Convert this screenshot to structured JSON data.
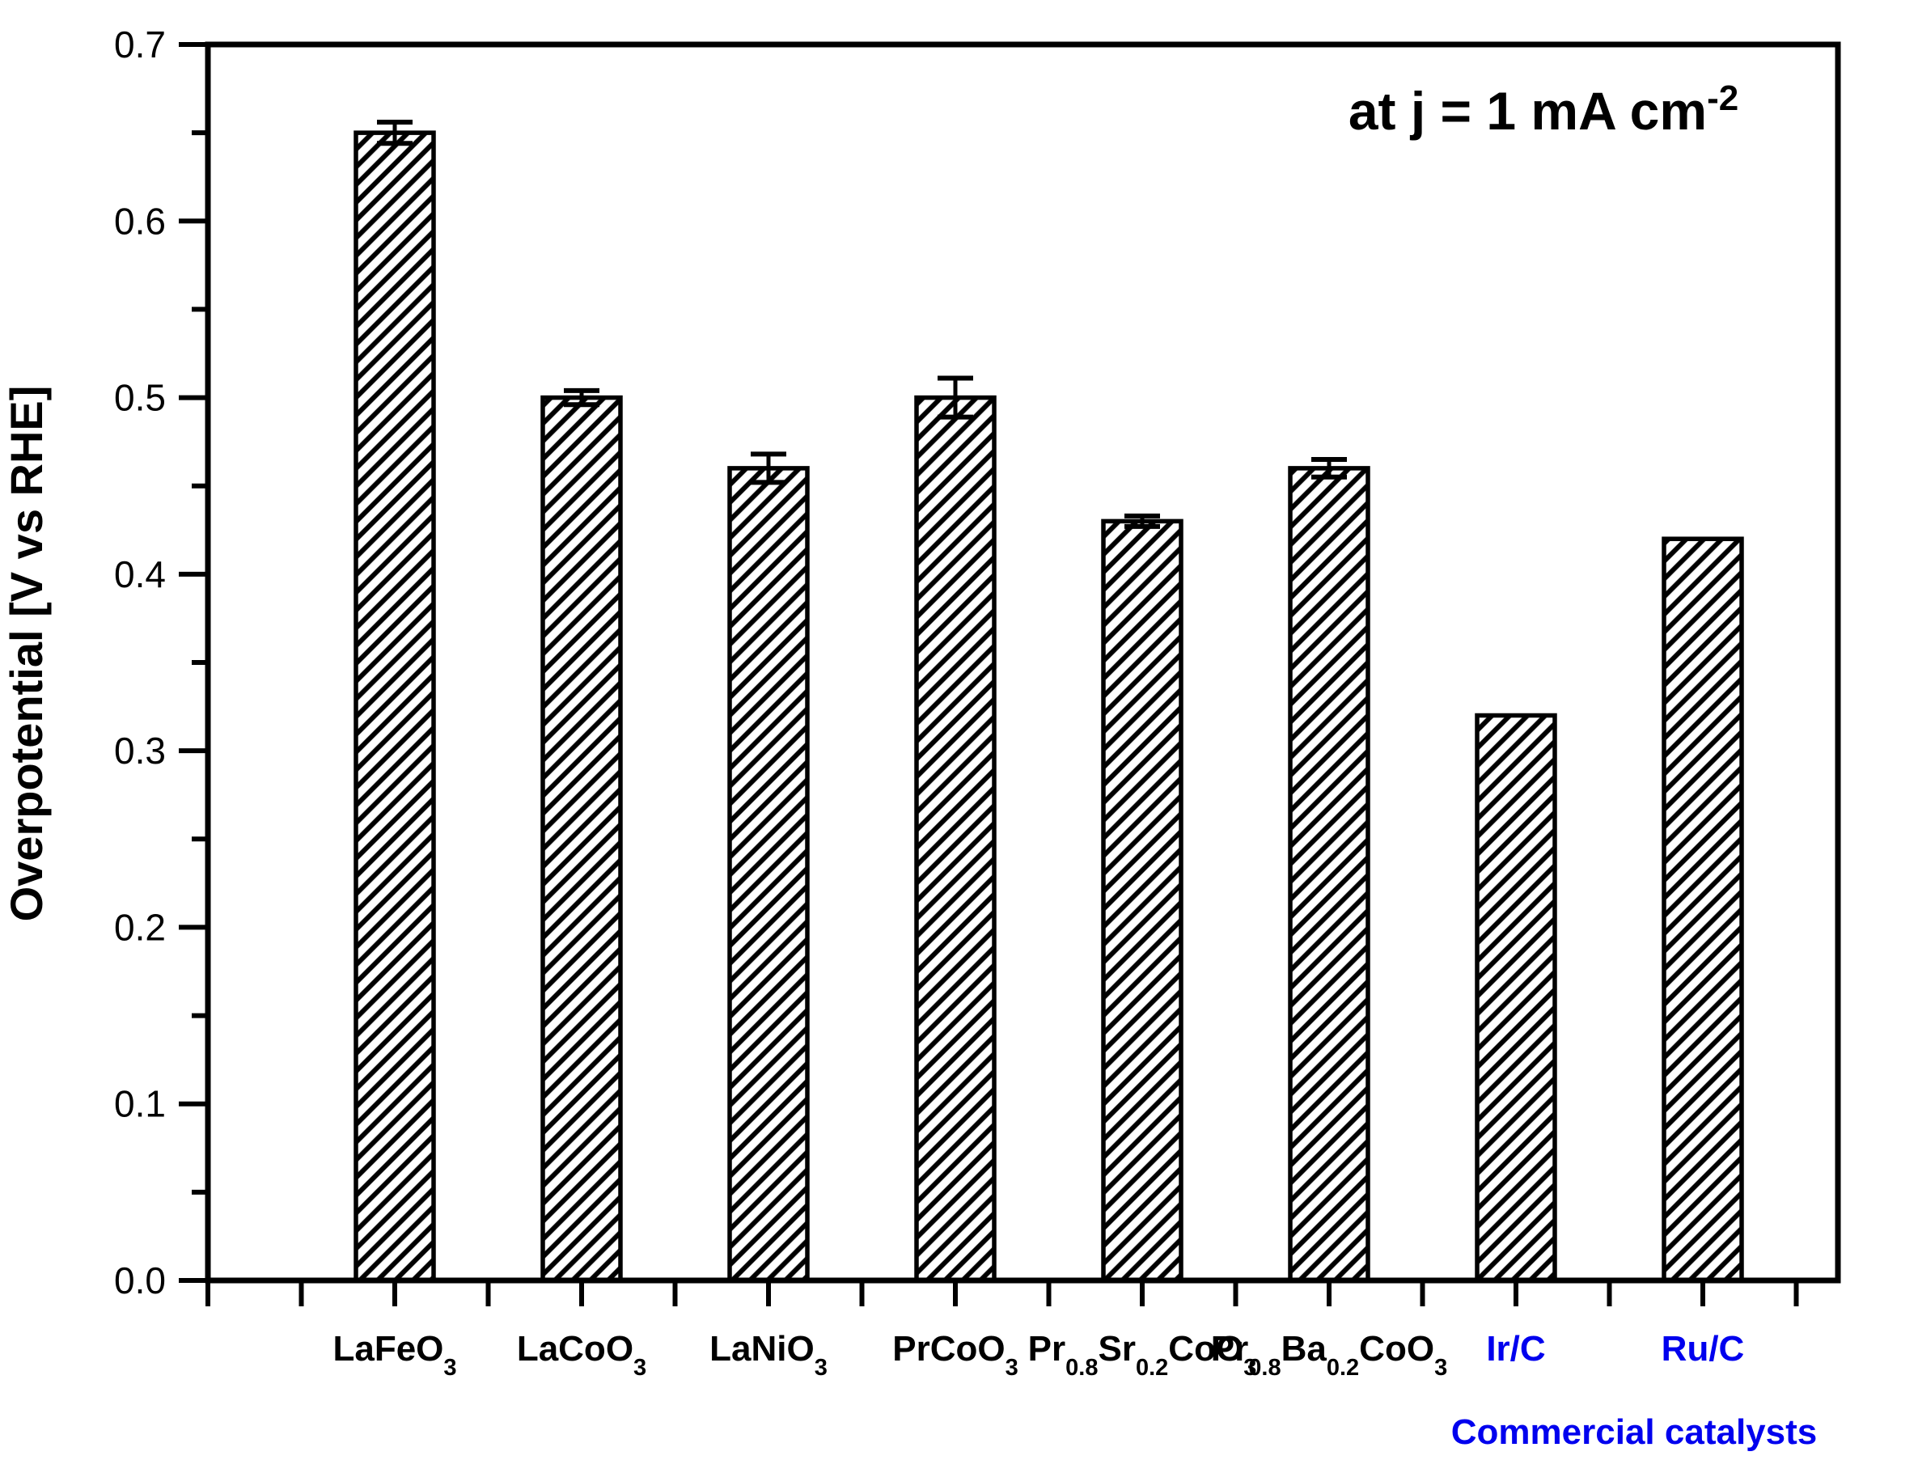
{
  "figure": {
    "background_color": "#ffffff",
    "axis_color": "#000000",
    "annotation_text": "at j = 1 mA cm^{-2}"
  },
  "chart_data": {
    "type": "bar",
    "title": "",
    "annotation": "at j = 1 mA cm^{-2}",
    "xlabel": "",
    "ylabel": "Overpotential [V vs RHE]",
    "ylim": [
      0.0,
      0.7
    ],
    "y_major_step": 0.1,
    "y_minor_step": 0.05,
    "y_tick_labels": [
      "0.0",
      "0.1",
      "0.2",
      "0.3",
      "0.4",
      "0.5",
      "0.6",
      "0.7"
    ],
    "grid": false,
    "legend": null,
    "bar_style": {
      "fill": "diagonal-hatch",
      "hatch_color": "#000000",
      "edge_color": "#000000",
      "background": "#ffffff"
    },
    "categories": [
      {
        "label": "LaFeO_{3}",
        "value": 0.65,
        "error": 0.006,
        "label_color": "#000000"
      },
      {
        "label": "LaCoO_{3}",
        "value": 0.5,
        "error": 0.004,
        "label_color": "#000000"
      },
      {
        "label": "LaNiO_{3}",
        "value": 0.46,
        "error": 0.008,
        "label_color": "#000000"
      },
      {
        "label": "PrCoO_{3}",
        "value": 0.5,
        "error": 0.011,
        "label_color": "#000000"
      },
      {
        "label": "Pr_{0.8}Sr_{0.2}CoO_{3}",
        "value": 0.43,
        "error": 0.003,
        "label_color": "#000000"
      },
      {
        "label": "Pr_{0.8}Ba_{0.2}CoO_{3}",
        "value": 0.46,
        "error": 0.005,
        "label_color": "#000000"
      },
      {
        "label": "Ir/C",
        "value": 0.32,
        "error": 0,
        "label_color": "#0000EE"
      },
      {
        "label": "Ru/C",
        "value": 0.42,
        "error": 0,
        "label_color": "#0000EE"
      }
    ],
    "group_annotation": {
      "text": "Commercial catalysts",
      "applies_to": [
        "Ir/C",
        "Ru/C"
      ],
      "color": "#0000EE"
    }
  }
}
